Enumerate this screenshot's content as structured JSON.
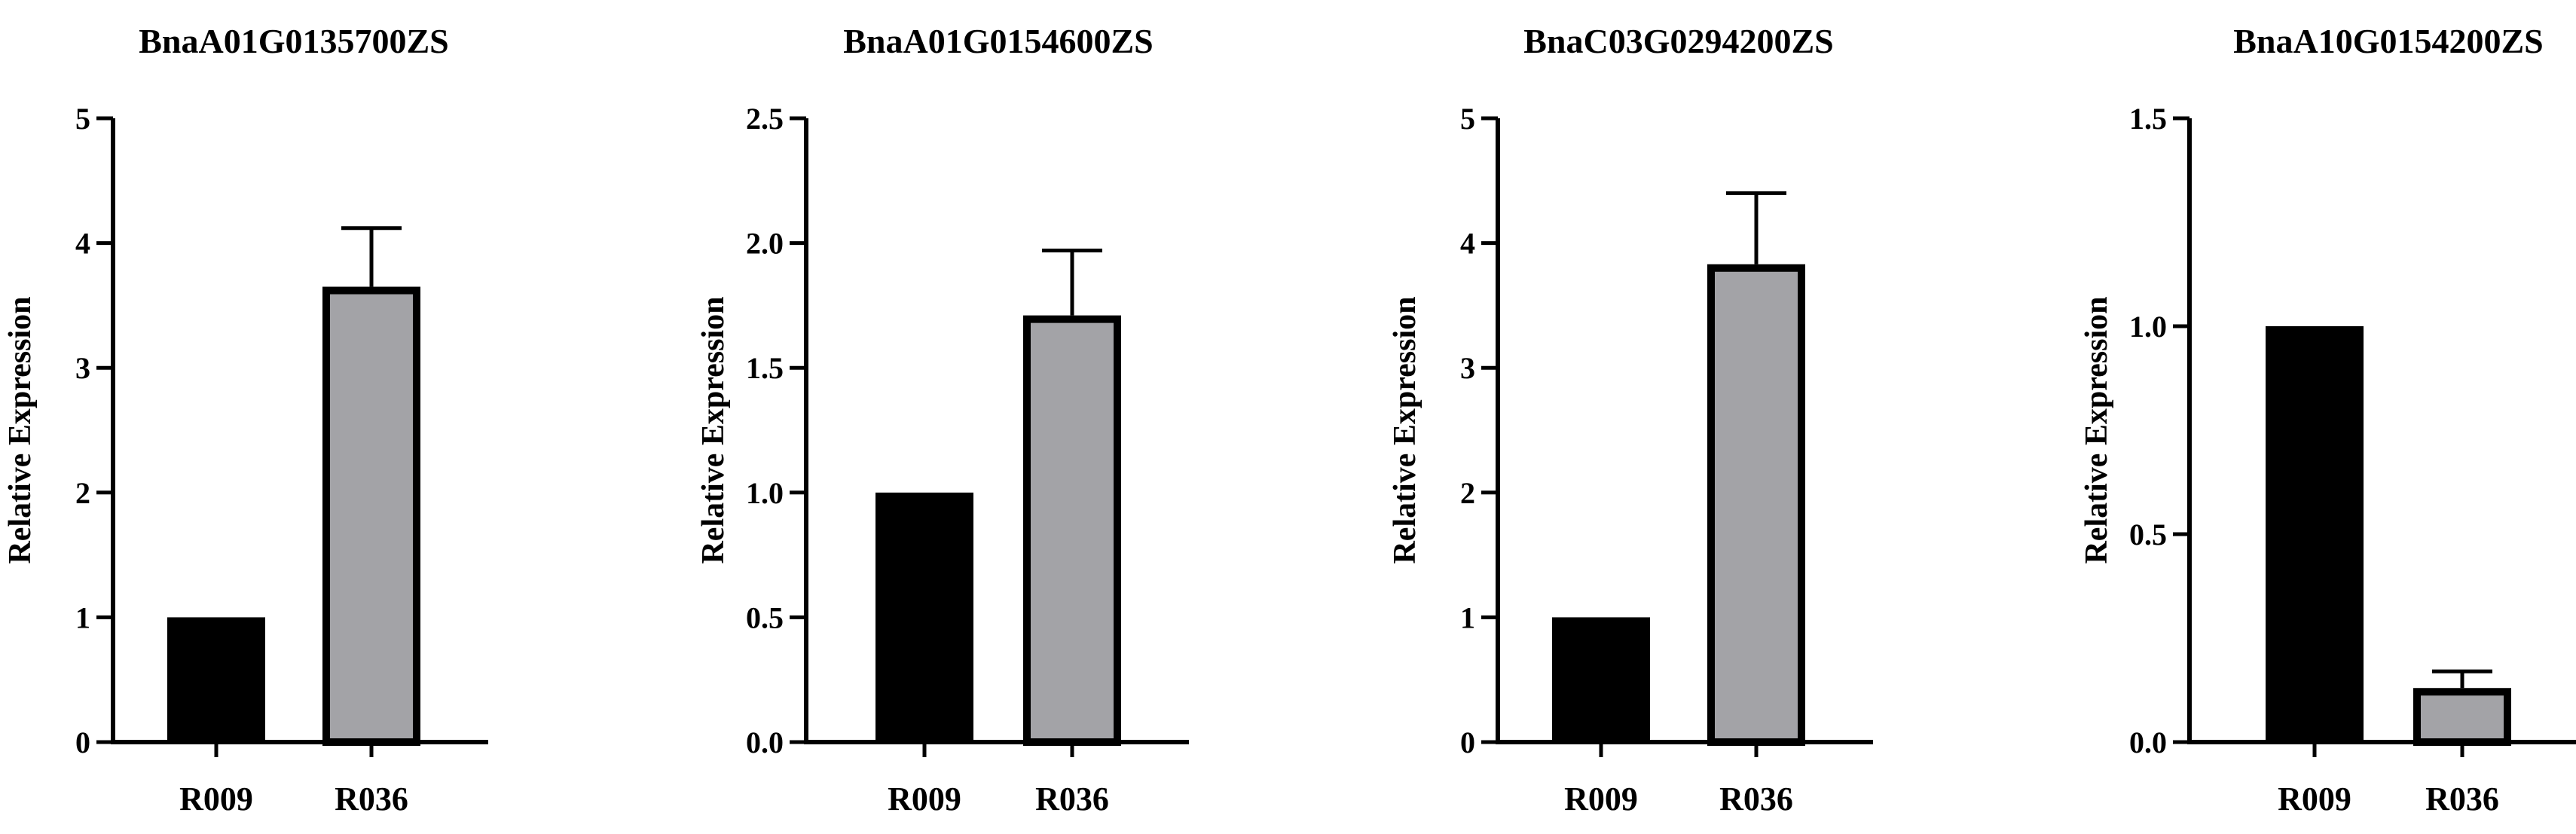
{
  "chart_data": [
    {
      "type": "bar",
      "title": "BnaA01G0135700ZS",
      "ylabel": "Relative Expression",
      "xlabel": "",
      "categories": [
        "R009",
        "R036"
      ],
      "values": [
        1.0,
        3.65
      ],
      "errors": [
        0,
        0.47
      ],
      "ylim": [
        0,
        5
      ],
      "yticks": [
        "0",
        "1",
        "2",
        "3",
        "4",
        "5"
      ],
      "ytick_values": [
        0,
        1,
        2,
        3,
        4,
        5
      ],
      "colors": [
        "#000000",
        "#a3a3a7"
      ],
      "grid": false
    },
    {
      "type": "bar",
      "title": "BnaA01G0154600ZS",
      "ylabel": "Relative Expression",
      "xlabel": "",
      "categories": [
        "R009",
        "R036"
      ],
      "values": [
        1.0,
        1.71
      ],
      "errors": [
        0,
        0.26
      ],
      "ylim": [
        0,
        2.5
      ],
      "yticks": [
        "0.0",
        "0.5",
        "1.0",
        "1.5",
        "2.0",
        "2.5"
      ],
      "ytick_values": [
        0,
        0.5,
        1.0,
        1.5,
        2.0,
        2.5
      ],
      "colors": [
        "#000000",
        "#a3a3a7"
      ],
      "grid": false
    },
    {
      "type": "bar",
      "title": "BnaC03G0294200ZS",
      "ylabel": "Relative Expression",
      "xlabel": "",
      "categories": [
        "R009",
        "R036"
      ],
      "values": [
        1.0,
        3.83
      ],
      "errors": [
        0,
        0.57
      ],
      "ylim": [
        0,
        5
      ],
      "yticks": [
        "0",
        "1",
        "2",
        "3",
        "4",
        "5"
      ],
      "ytick_values": [
        0,
        1,
        2,
        3,
        4,
        5
      ],
      "colors": [
        "#000000",
        "#a3a3a7"
      ],
      "grid": false
    },
    {
      "type": "bar",
      "title": "BnaA10G0154200ZS",
      "ylabel": "Relative Expression",
      "xlabel": "",
      "categories": [
        "R009",
        "R036"
      ],
      "values": [
        1.0,
        0.13
      ],
      "errors": [
        0,
        0.04
      ],
      "ylim": [
        0,
        1.5
      ],
      "yticks": [
        "0.0",
        "0.5",
        "1.0",
        "1.5"
      ],
      "ytick_values": [
        0,
        0.5,
        1.0,
        1.5
      ],
      "colors": [
        "#000000",
        "#a3a3a7"
      ],
      "grid": false
    }
  ]
}
